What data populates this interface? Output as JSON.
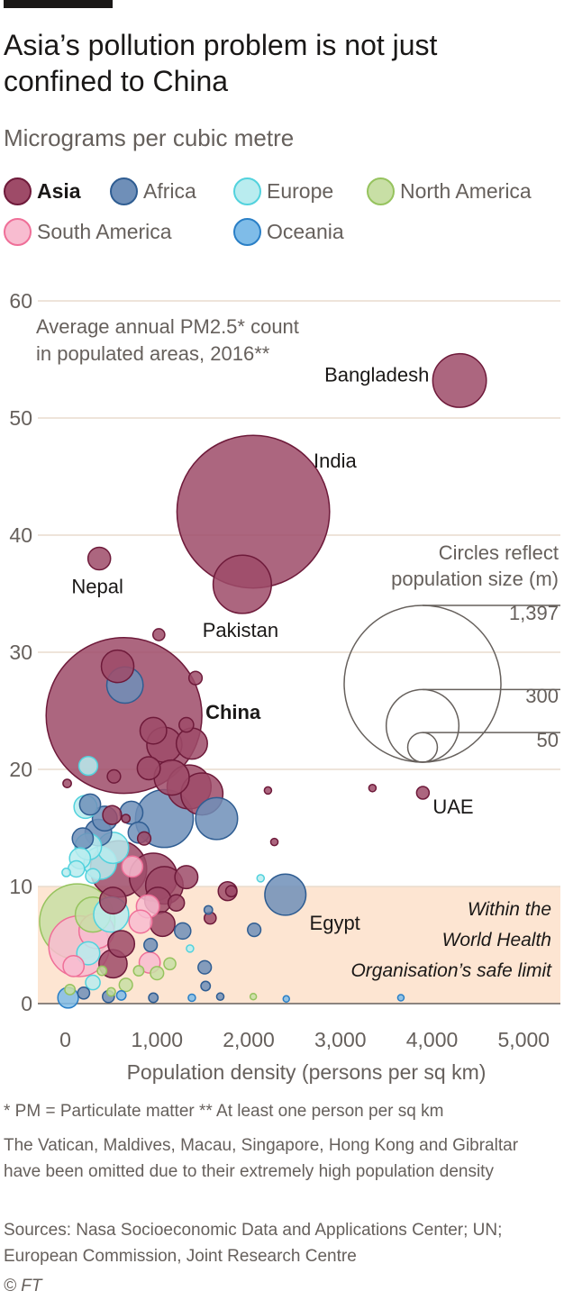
{
  "header": {
    "title": "Asia’s pollution problem is not just confined to China",
    "subtitle": "Micrograms per cubic metre"
  },
  "legend": [
    {
      "label": "Asia",
      "fill": "#9e4b68",
      "stroke": "#6e1a3a",
      "bold": true
    },
    {
      "label": "Africa",
      "fill": "#6f8fb8",
      "stroke": "#2f5d92",
      "bold": false
    },
    {
      "label": "Europe",
      "fill": "#b9ecef",
      "stroke": "#52d2dd",
      "bold": false
    },
    {
      "label": "North America",
      "fill": "#c8dfa5",
      "stroke": "#96c35e",
      "bold": false
    },
    {
      "label": "South America",
      "fill": "#f8bcd0",
      "stroke": "#ef6f98",
      "bold": false
    },
    {
      "label": "Oceania",
      "fill": "#7fbce8",
      "stroke": "#2a7fc6",
      "bold": false
    }
  ],
  "chart_data": {
    "type": "scatter",
    "annotation": [
      "Average annual PM2.5* count",
      "in populated areas, 2016**"
    ],
    "xlabel": "Population density (persons per sq km)",
    "ylabel": "",
    "xlim": [
      -300,
      5400
    ],
    "ylim": [
      0,
      60
    ],
    "x_ticks": [
      0,
      1000,
      2000,
      3000,
      4000,
      5000
    ],
    "x_tick_labels": [
      "0",
      "1,000",
      "2,000",
      "3,000",
      "4,000",
      "5,000"
    ],
    "y_ticks": [
      0,
      10,
      20,
      30,
      40,
      50,
      60
    ],
    "safe_limit": {
      "from": 0,
      "to": 10,
      "label": [
        "Within the",
        "World Health",
        "Organisation’s safe limit"
      ]
    },
    "size_legend": {
      "title": [
        "Circles reflect",
        "population size (m)"
      ],
      "values": [
        1397,
        300,
        50
      ],
      "labels": [
        "1,397",
        "300",
        "50"
      ]
    },
    "points": [
      {
        "label": "Bangladesh",
        "x": 4300,
        "y": 53.2,
        "pop": 163,
        "region": "Asia",
        "label_pos": "left"
      },
      {
        "label": "India",
        "x": 2050,
        "y": 42,
        "pop": 1324,
        "region": "Asia",
        "label_pos": "upper-right"
      },
      {
        "label": "Nepal",
        "x": 370,
        "y": 38,
        "pop": 29,
        "region": "Asia",
        "label_pos": "below"
      },
      {
        "label": "Pakistan",
        "x": 1930,
        "y": 35.8,
        "pop": 193,
        "region": "Asia",
        "label_pos": "below"
      },
      {
        "label": "China",
        "x": 640,
        "y": 24.6,
        "pop": 1379,
        "region": "Asia",
        "label_pos": "right",
        "bold": true
      },
      {
        "label": "UAE",
        "x": 3900,
        "y": 18,
        "pop": 9,
        "region": "Asia",
        "label_pos": "lower-right"
      },
      {
        "label": "Egypt",
        "x": 2400,
        "y": 9.3,
        "pop": 96,
        "region": "Africa",
        "label_pos": "lower-right"
      },
      {
        "label": "",
        "x": 1020,
        "y": 31.5,
        "pop": 8,
        "region": "Asia"
      },
      {
        "label": "",
        "x": 1420,
        "y": 27.8,
        "pop": 10,
        "region": "Asia"
      },
      {
        "label": "",
        "x": 570,
        "y": 28.8,
        "pop": 60,
        "region": "Asia"
      },
      {
        "label": "",
        "x": 650,
        "y": 27.2,
        "pop": 75,
        "region": "Africa"
      },
      {
        "label": "",
        "x": 960,
        "y": 23.3,
        "pop": 40,
        "region": "Asia"
      },
      {
        "label": "",
        "x": 1320,
        "y": 23.8,
        "pop": 12,
        "region": "Asia"
      },
      {
        "label": "",
        "x": 1380,
        "y": 22.2,
        "pop": 55,
        "region": "Asia"
      },
      {
        "label": "",
        "x": 1080,
        "y": 22.1,
        "pop": 70,
        "region": "Asia"
      },
      {
        "label": "",
        "x": 910,
        "y": 20.1,
        "pop": 30,
        "region": "Asia"
      },
      {
        "label": "",
        "x": 1160,
        "y": 19.3,
        "pop": 70,
        "region": "Asia"
      },
      {
        "label": "",
        "x": 1350,
        "y": 18.5,
        "pop": 110,
        "region": "Asia"
      },
      {
        "label": "",
        "x": 1490,
        "y": 17.9,
        "pop": 100,
        "region": "Asia"
      },
      {
        "label": "",
        "x": 1080,
        "y": 15.8,
        "pop": 190,
        "region": "Africa"
      },
      {
        "label": "",
        "x": 1650,
        "y": 15.8,
        "pop": 100,
        "region": "Africa"
      },
      {
        "label": "",
        "x": 530,
        "y": 19.4,
        "pop": 10,
        "region": "Asia"
      },
      {
        "label": "",
        "x": 3350,
        "y": 18.4,
        "pop": 3,
        "region": "Asia"
      },
      {
        "label": "",
        "x": 2210,
        "y": 18.2,
        "pop": 3,
        "region": "Asia"
      },
      {
        "label": "",
        "x": 2280,
        "y": 13.8,
        "pop": 3,
        "region": "Asia"
      },
      {
        "label": "",
        "x": 20,
        "y": 18.8,
        "pop": 4,
        "region": "Asia"
      },
      {
        "label": "",
        "x": 250,
        "y": 20.3,
        "pop": 20,
        "region": "Europe"
      },
      {
        "label": "",
        "x": 270,
        "y": 17.0,
        "pop": 25,
        "region": "Africa"
      },
      {
        "label": "",
        "x": 510,
        "y": 16.1,
        "pop": 20,
        "region": "Asia"
      },
      {
        "label": "",
        "x": 660,
        "y": 15.8,
        "pop": 4,
        "region": "Asia"
      },
      {
        "label": "",
        "x": 720,
        "y": 16.3,
        "pop": 30,
        "region": "Africa"
      },
      {
        "label": "",
        "x": 430,
        "y": 15.8,
        "pop": 35,
        "region": "Africa"
      },
      {
        "label": "",
        "x": 360,
        "y": 14.6,
        "pop": 40,
        "region": "Africa"
      },
      {
        "label": "",
        "x": 220,
        "y": 16.8,
        "pop": 30,
        "region": "Europe"
      },
      {
        "label": "",
        "x": 190,
        "y": 14.1,
        "pop": 25,
        "region": "Africa"
      },
      {
        "label": "",
        "x": 800,
        "y": 14.6,
        "pop": 25,
        "region": "Africa"
      },
      {
        "label": "",
        "x": 380,
        "y": 12.0,
        "pop": 60,
        "region": "Europe"
      },
      {
        "label": "",
        "x": 520,
        "y": 13.3,
        "pop": 55,
        "region": "Europe"
      },
      {
        "label": "",
        "x": 250,
        "y": 13.4,
        "pop": 40,
        "region": "Europe"
      },
      {
        "label": "",
        "x": 160,
        "y": 12.4,
        "pop": 25,
        "region": "Europe"
      },
      {
        "label": "",
        "x": 300,
        "y": 10.9,
        "pop": 12,
        "region": "Europe"
      },
      {
        "label": "",
        "x": 860,
        "y": 14.1,
        "pop": 10,
        "region": "Asia"
      },
      {
        "label": "",
        "x": 580,
        "y": 11.5,
        "pop": 180,
        "region": "Asia"
      },
      {
        "label": "",
        "x": 960,
        "y": 10.8,
        "pop": 130,
        "region": "Asia"
      },
      {
        "label": "",
        "x": 1320,
        "y": 10.8,
        "pop": 30,
        "region": "Asia"
      },
      {
        "label": "",
        "x": 730,
        "y": 11.7,
        "pop": 25,
        "region": "South America"
      },
      {
        "label": "",
        "x": 1770,
        "y": 9.6,
        "pop": 20,
        "region": "Asia"
      },
      {
        "label": "",
        "x": 1810,
        "y": 9.6,
        "pop": 7,
        "region": "Asia"
      },
      {
        "label": "",
        "x": 1080,
        "y": 10.1,
        "pop": 80,
        "region": "Asia"
      },
      {
        "label": "",
        "x": 1010,
        "y": 8.8,
        "pop": 40,
        "region": "Asia"
      },
      {
        "label": "",
        "x": 1210,
        "y": 8.6,
        "pop": 15,
        "region": "Asia"
      },
      {
        "label": "",
        "x": 1060,
        "y": 6.8,
        "pop": 35,
        "region": "Asia"
      },
      {
        "label": "",
        "x": 1580,
        "y": 7.3,
        "pop": 8,
        "region": "Asia"
      },
      {
        "label": "",
        "x": 900,
        "y": 8.3,
        "pop": 30,
        "region": "South America"
      },
      {
        "label": "",
        "x": 820,
        "y": 7.0,
        "pop": 30,
        "region": "South America"
      },
      {
        "label": "",
        "x": 520,
        "y": 8.8,
        "pop": 40,
        "region": "Asia"
      },
      {
        "label": "",
        "x": 610,
        "y": 5.1,
        "pop": 40,
        "region": "Asia"
      },
      {
        "label": "",
        "x": 930,
        "y": 5.0,
        "pop": 10,
        "region": "Africa"
      },
      {
        "label": "",
        "x": 1280,
        "y": 6.2,
        "pop": 15,
        "region": "Africa"
      },
      {
        "label": "",
        "x": 2060,
        "y": 6.3,
        "pop": 10,
        "region": "Africa"
      },
      {
        "label": "",
        "x": 1560,
        "y": 8.0,
        "pop": 4,
        "region": "Africa"
      },
      {
        "label": "",
        "x": 2130,
        "y": 10.7,
        "pop": 3,
        "region": "Europe"
      },
      {
        "label": "",
        "x": 1360,
        "y": 4.7,
        "pop": 3,
        "region": "Europe"
      },
      {
        "label": "",
        "x": 130,
        "y": 7.0,
        "pop": 323,
        "region": "North America"
      },
      {
        "label": "",
        "x": 150,
        "y": 4.9,
        "pop": 209,
        "region": "South America"
      },
      {
        "label": "",
        "x": 340,
        "y": 6.2,
        "pop": 70,
        "region": "South America"
      },
      {
        "label": "",
        "x": 300,
        "y": 7.6,
        "pop": 70,
        "region": "North America"
      },
      {
        "label": "",
        "x": 500,
        "y": 7.6,
        "pop": 70,
        "region": "Europe"
      },
      {
        "label": "",
        "x": 520,
        "y": 3.4,
        "pop": 45,
        "region": "Asia"
      },
      {
        "label": "",
        "x": 250,
        "y": 4.3,
        "pop": 30,
        "region": "Europe"
      },
      {
        "label": "",
        "x": 90,
        "y": 3.2,
        "pop": 25,
        "region": "South America"
      },
      {
        "label": "",
        "x": 920,
        "y": 3.5,
        "pop": 25,
        "region": "South America"
      },
      {
        "label": "",
        "x": 1000,
        "y": 2.6,
        "pop": 10,
        "region": "North America"
      },
      {
        "label": "",
        "x": 1140,
        "y": 3.4,
        "pop": 8,
        "region": "North America"
      },
      {
        "label": "",
        "x": 800,
        "y": 2.8,
        "pop": 6,
        "region": "North America"
      },
      {
        "label": "",
        "x": 660,
        "y": 1.6,
        "pop": 10,
        "region": "North America"
      },
      {
        "label": "",
        "x": 1520,
        "y": 3.1,
        "pop": 10,
        "region": "Africa"
      },
      {
        "label": "",
        "x": 1530,
        "y": 1.5,
        "pop": 5,
        "region": "Africa"
      },
      {
        "label": "",
        "x": 1690,
        "y": 0.6,
        "pop": 3,
        "region": "Africa"
      },
      {
        "label": "",
        "x": 1380,
        "y": 0.5,
        "pop": 3,
        "region": "Oceania"
      },
      {
        "label": "",
        "x": 2050,
        "y": 0.6,
        "pop": 2,
        "region": "North America"
      },
      {
        "label": "",
        "x": 2410,
        "y": 0.4,
        "pop": 2,
        "region": "Oceania"
      },
      {
        "label": "",
        "x": 3660,
        "y": 0.5,
        "pop": 2,
        "region": "Oceania"
      },
      {
        "label": "",
        "x": 30,
        "y": 0.5,
        "pop": 24,
        "region": "Oceania"
      },
      {
        "label": "",
        "x": 200,
        "y": 0.9,
        "pop": 8,
        "region": "Africa"
      },
      {
        "label": "",
        "x": 470,
        "y": 0.6,
        "pop": 8,
        "region": "Africa"
      },
      {
        "label": "",
        "x": 610,
        "y": 0.7,
        "pop": 5,
        "region": "Oceania"
      },
      {
        "label": "",
        "x": 960,
        "y": 0.5,
        "pop": 5,
        "region": "Africa"
      },
      {
        "label": "",
        "x": 300,
        "y": 1.8,
        "pop": 12,
        "region": "Europe"
      },
      {
        "label": "",
        "x": 50,
        "y": 1.2,
        "pop": 6,
        "region": "North America"
      },
      {
        "label": "",
        "x": 400,
        "y": 2.8,
        "pop": 5,
        "region": "North America"
      },
      {
        "label": "",
        "x": 500,
        "y": 1.0,
        "pop": 4,
        "region": "North America"
      },
      {
        "label": "",
        "x": 10,
        "y": 11.2,
        "pop": 4,
        "region": "Europe"
      },
      {
        "label": "",
        "x": 120,
        "y": 11.5,
        "pop": 15,
        "region": "Europe"
      }
    ]
  },
  "footer": {
    "footnote": "* PM = Particulate matter   ** At least one person per sq km",
    "omitted": "The Vatican, Maldives, Macau, Singapore, Hong Kong and Gibraltar have been omitted due to their extremely high population density",
    "sources": "Sources: Nasa Socioeconomic Data and Applications Center; UN; European Commission, Joint Research Centre",
    "copyright": "© FT"
  }
}
